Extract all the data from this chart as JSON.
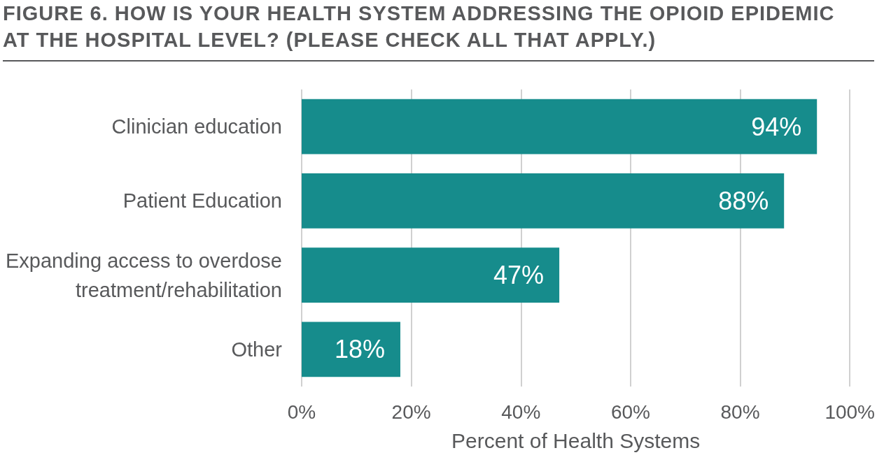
{
  "chart_data": {
    "type": "bar",
    "orientation": "horizontal",
    "title": "FIGURE 6. HOW IS YOUR HEALTH SYSTEM ADDRESSING THE OPIOID EPIDEMIC AT THE HOSPITAL LEVEL? (PLEASE CHECK ALL THAT APPLY.)",
    "xlabel": "Percent of Health Systems",
    "categories": [
      "Clinician education",
      "Patient Education",
      "Expanding access to overdose treatment/rehabilitation",
      "Other"
    ],
    "values": [
      94,
      88,
      47,
      18
    ],
    "value_labels": [
      "94%",
      "88%",
      "47%",
      "18%"
    ],
    "color": "#168c8c",
    "xlim": [
      0,
      100
    ],
    "xticks": [
      {
        "value": 0,
        "label": "0%"
      },
      {
        "value": 20,
        "label": "20%"
      },
      {
        "value": 40,
        "label": "40%"
      },
      {
        "value": 60,
        "label": "60%"
      },
      {
        "value": 80,
        "label": "80%"
      },
      {
        "value": 100,
        "label": "100%"
      }
    ],
    "grid": "x"
  }
}
